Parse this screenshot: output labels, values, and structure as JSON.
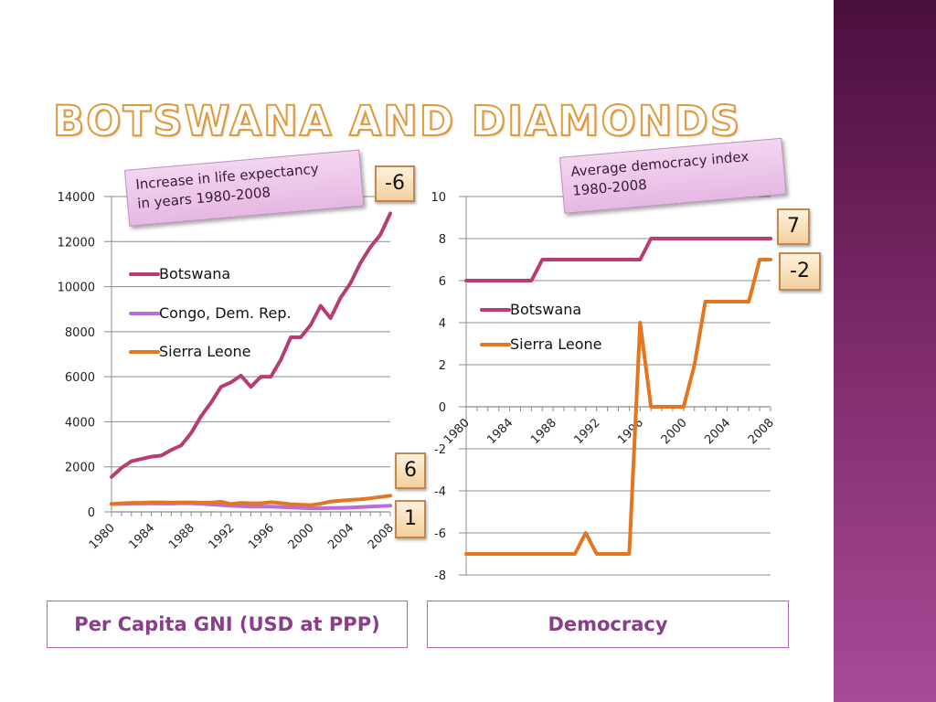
{
  "slide": {
    "title": "BOTSWANA AND DIAMONDS"
  },
  "colors": {
    "botswana": "#b83d72",
    "congo": "#b76ed6",
    "sierra_leone": "#e3761f",
    "sidebar": "#7a2866"
  },
  "callouts": {
    "gni": [
      "Increase in life expectancy",
      "in years 1980-2008"
    ],
    "democracy": [
      "Average democracy index",
      "1980-2008"
    ]
  },
  "badges": {
    "gni_botswana": "-6",
    "gni_congo": "6",
    "gni_sierra_leone": "1",
    "dem_botswana": "7",
    "dem_sierra_leone": "-2"
  },
  "bottom_labels": {
    "gni": "Per Capita GNI (USD at PPP)",
    "democracy": "Democracy"
  },
  "chart_data": [
    {
      "type": "line",
      "ylim": [
        0,
        14000
      ],
      "yticks": [
        0,
        2000,
        4000,
        6000,
        8000,
        10000,
        12000,
        14000
      ],
      "x": [
        1980,
        1981,
        1982,
        1983,
        1984,
        1985,
        1986,
        1987,
        1988,
        1989,
        1990,
        1991,
        1992,
        1993,
        1994,
        1995,
        1996,
        1997,
        1998,
        1999,
        2000,
        2001,
        2002,
        2003,
        2004,
        2005,
        2006,
        2007,
        2008
      ],
      "xticklabels": [
        "1980",
        "1984",
        "1988",
        "1992",
        "1996",
        "2000",
        "2004",
        "2008"
      ],
      "legend": "upper-left",
      "grid": true,
      "series": [
        {
          "name": "Botswana",
          "color_key": "botswana",
          "values": [
            1550,
            1950,
            2250,
            2350,
            2450,
            2500,
            2750,
            2950,
            3500,
            4250,
            4850,
            5550,
            5750,
            6050,
            5550,
            6000,
            6000,
            6750,
            7750,
            7750,
            8300,
            9150,
            8600,
            9500,
            10150,
            11050,
            11750,
            12300,
            13250
          ]
        },
        {
          "name": "Congo, Dem. Rep.",
          "color_key": "congo",
          "values": [
            350,
            360,
            370,
            370,
            380,
            370,
            370,
            380,
            380,
            360,
            330,
            300,
            270,
            250,
            230,
            230,
            230,
            210,
            200,
            180,
            160,
            160,
            170,
            180,
            190,
            210,
            230,
            250,
            270
          ]
        },
        {
          "name": "Sierra Leone",
          "color_key": "sierra_leone",
          "values": [
            350,
            380,
            400,
            400,
            420,
            420,
            410,
            420,
            420,
            410,
            410,
            450,
            350,
            400,
            380,
            380,
            430,
            390,
            340,
            320,
            300,
            360,
            460,
            500,
            530,
            560,
            600,
            660,
            720
          ]
        }
      ]
    },
    {
      "type": "line",
      "ylim": [
        -8,
        10
      ],
      "yticks": [
        -8,
        -6,
        -4,
        -2,
        0,
        2,
        4,
        6,
        8,
        10
      ],
      "x": [
        1980,
        1981,
        1982,
        1983,
        1984,
        1985,
        1986,
        1987,
        1988,
        1989,
        1990,
        1991,
        1992,
        1993,
        1994,
        1995,
        1996,
        1997,
        1998,
        1999,
        2000,
        2001,
        2002,
        2003,
        2004,
        2005,
        2006,
        2007,
        2008
      ],
      "xticklabels": [
        "1980",
        "1984",
        "1988",
        "1992",
        "1996",
        "2000",
        "2004",
        "2008"
      ],
      "legend": "center-left",
      "grid": true,
      "series": [
        {
          "name": "Botswana",
          "color_key": "botswana",
          "values": [
            6,
            6,
            6,
            6,
            6,
            6,
            6,
            7,
            7,
            7,
            7,
            7,
            7,
            7,
            7,
            7,
            7,
            8,
            8,
            8,
            8,
            8,
            8,
            8,
            8,
            8,
            8,
            8,
            8
          ]
        },
        {
          "name": "Sierra Leone",
          "color_key": "sierra_leone",
          "values": [
            -7,
            -7,
            -7,
            -7,
            -7,
            -7,
            -7,
            -7,
            -7,
            -7,
            -7,
            -6,
            -7,
            -7,
            -7,
            -7,
            4,
            0,
            0,
            0,
            0,
            2,
            5,
            5,
            5,
            5,
            5,
            7,
            7
          ]
        }
      ]
    }
  ]
}
